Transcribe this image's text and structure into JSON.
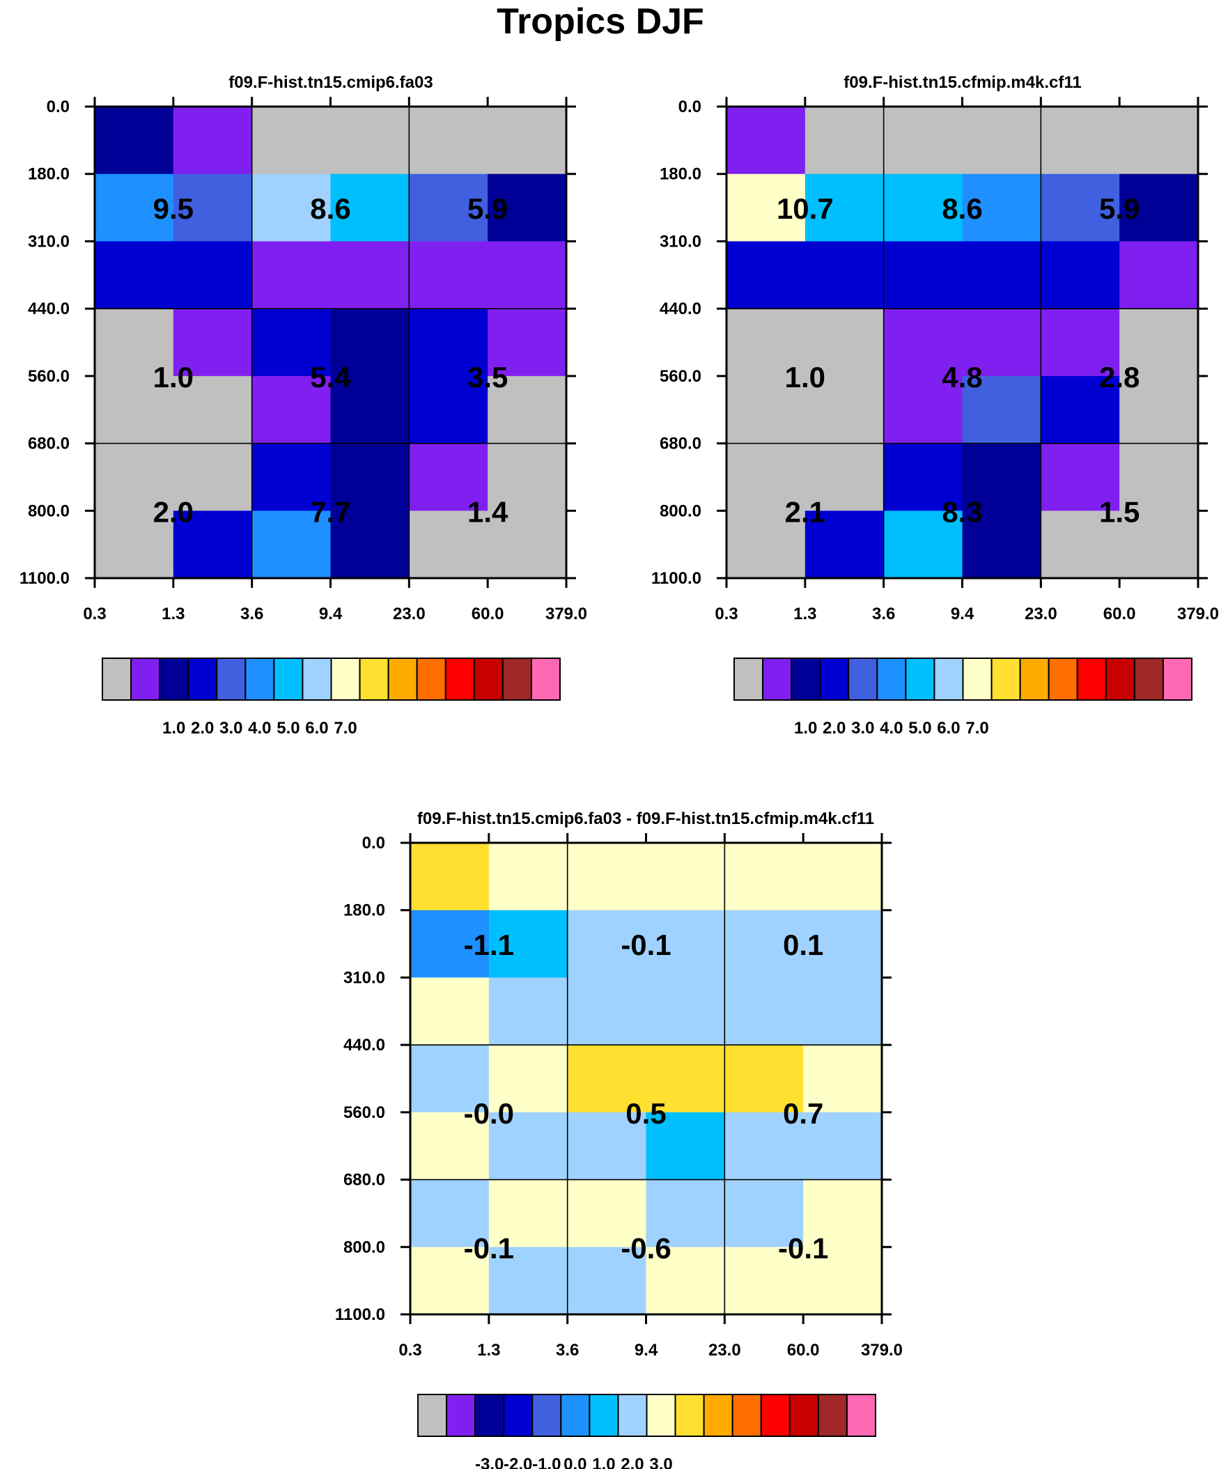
{
  "figure_title": "Tropics DJF",
  "chart_data": [
    {
      "type": "heatmap",
      "title": "f09.F-hist.tn15.cmip6.fa03",
      "x_ticks": [
        "0.3",
        "1.3",
        "3.6",
        "9.4",
        "23.0",
        "60.0",
        "379.0"
      ],
      "y_ticks": [
        "0.0",
        "180.0",
        "310.0",
        "440.0",
        "560.0",
        "680.0",
        "800.0",
        "1100.0"
      ],
      "cells": [
        [
          1,
          0,
          -1,
          -1,
          -1,
          -1
        ],
        [
          4,
          3,
          6,
          5,
          3,
          1
        ],
        [
          2,
          2,
          0,
          0,
          0,
          0
        ],
        [
          -1,
          0,
          2,
          1,
          2,
          0
        ],
        [
          -1,
          -1,
          0,
          1,
          2,
          -1
        ],
        [
          -1,
          -1,
          2,
          1,
          0,
          -1
        ],
        [
          -1,
          2,
          4,
          1,
          -1,
          -1
        ]
      ],
      "box_labels": [
        [
          "9.5",
          "8.6",
          "5.9"
        ],
        [
          "1.0",
          "5.4",
          "3.5"
        ],
        [
          "2.0",
          "7.7",
          "1.4"
        ]
      ],
      "colorbar": {
        "colors": [
          "#c0c0c0",
          "#8020f0",
          "#000096",
          "#0000d2",
          "#4060e0",
          "#1e90ff",
          "#00bfff",
          "#a0d2ff",
          "#ffffc8",
          "#ffe030",
          "#ffaa00",
          "#ff6e00",
          "#ff0000",
          "#c80000",
          "#a02828",
          "#ff69b4"
        ],
        "labels": [
          "1.0",
          "2.0",
          "3.0",
          "4.0",
          "5.0",
          "6.0",
          "7.0"
        ]
      }
    },
    {
      "type": "heatmap",
      "title": "f09.F-hist.tn15.cfmip.m4k.cf11",
      "x_ticks": [
        "0.3",
        "1.3",
        "3.6",
        "9.4",
        "23.0",
        "60.0",
        "379.0"
      ],
      "y_ticks": [
        "0.0",
        "180.0",
        "310.0",
        "440.0",
        "560.0",
        "680.0",
        "800.0",
        "1100.0"
      ],
      "cells": [
        [
          0,
          -1,
          -1,
          -1,
          -1,
          -1
        ],
        [
          7,
          5,
          5,
          4,
          3,
          1
        ],
        [
          2,
          2,
          2,
          2,
          2,
          0
        ],
        [
          -1,
          -1,
          0,
          0,
          0,
          -1
        ],
        [
          -1,
          -1,
          0,
          3,
          2,
          -1
        ],
        [
          -1,
          -1,
          2,
          1,
          0,
          -1
        ],
        [
          -1,
          2,
          5,
          1,
          -1,
          -1
        ]
      ],
      "box_labels": [
        [
          "10.7",
          "8.6",
          "5.9"
        ],
        [
          "1.0",
          "4.8",
          "2.8"
        ],
        [
          "2.1",
          "8.3",
          "1.5"
        ]
      ],
      "colorbar": {
        "colors": [
          "#c0c0c0",
          "#8020f0",
          "#000096",
          "#0000d2",
          "#4060e0",
          "#1e90ff",
          "#00bfff",
          "#a0d2ff",
          "#ffffc8",
          "#ffe030",
          "#ffaa00",
          "#ff6e00",
          "#ff0000",
          "#c80000",
          "#a02828",
          "#ff69b4"
        ],
        "labels": [
          "1.0",
          "2.0",
          "3.0",
          "4.0",
          "5.0",
          "6.0",
          "7.0"
        ]
      }
    },
    {
      "type": "heatmap",
      "title": "f09.F-hist.tn15.cmip6.fa03 - f09.F-hist.tn15.cfmip.m4k.cf11",
      "x_ticks": [
        "0.3",
        "1.3",
        "3.6",
        "9.4",
        "23.0",
        "60.0",
        "379.0"
      ],
      "y_ticks": [
        "0.0",
        "180.0",
        "310.0",
        "440.0",
        "560.0",
        "680.0",
        "800.0",
        "1100.0"
      ],
      "cells": [
        [
          8,
          7,
          7,
          7,
          7,
          7
        ],
        [
          4,
          5,
          6,
          6,
          6,
          6
        ],
        [
          7,
          6,
          6,
          6,
          6,
          6
        ],
        [
          6,
          7,
          8,
          8,
          8,
          7
        ],
        [
          7,
          6,
          6,
          5,
          6,
          6
        ],
        [
          6,
          7,
          7,
          6,
          6,
          7
        ],
        [
          7,
          6,
          6,
          7,
          7,
          7
        ]
      ],
      "box_labels": [
        [
          "-1.1",
          "-0.1",
          "0.1"
        ],
        [
          "-0.0",
          "0.5",
          "0.7"
        ],
        [
          "-0.1",
          "-0.6",
          "-0.1"
        ]
      ],
      "colorbar": {
        "colors": [
          "#c0c0c0",
          "#8020f0",
          "#000096",
          "#0000d2",
          "#4060e0",
          "#1e90ff",
          "#00bfff",
          "#a0d2ff",
          "#ffffc8",
          "#ffe030",
          "#ffaa00",
          "#ff6e00",
          "#ff0000",
          "#c80000",
          "#a02828",
          "#ff69b4"
        ],
        "labels": [
          "-3.0",
          "-2.0",
          "-1.0",
          "0.0",
          "1.0",
          "2.0",
          "3.0"
        ]
      }
    }
  ]
}
